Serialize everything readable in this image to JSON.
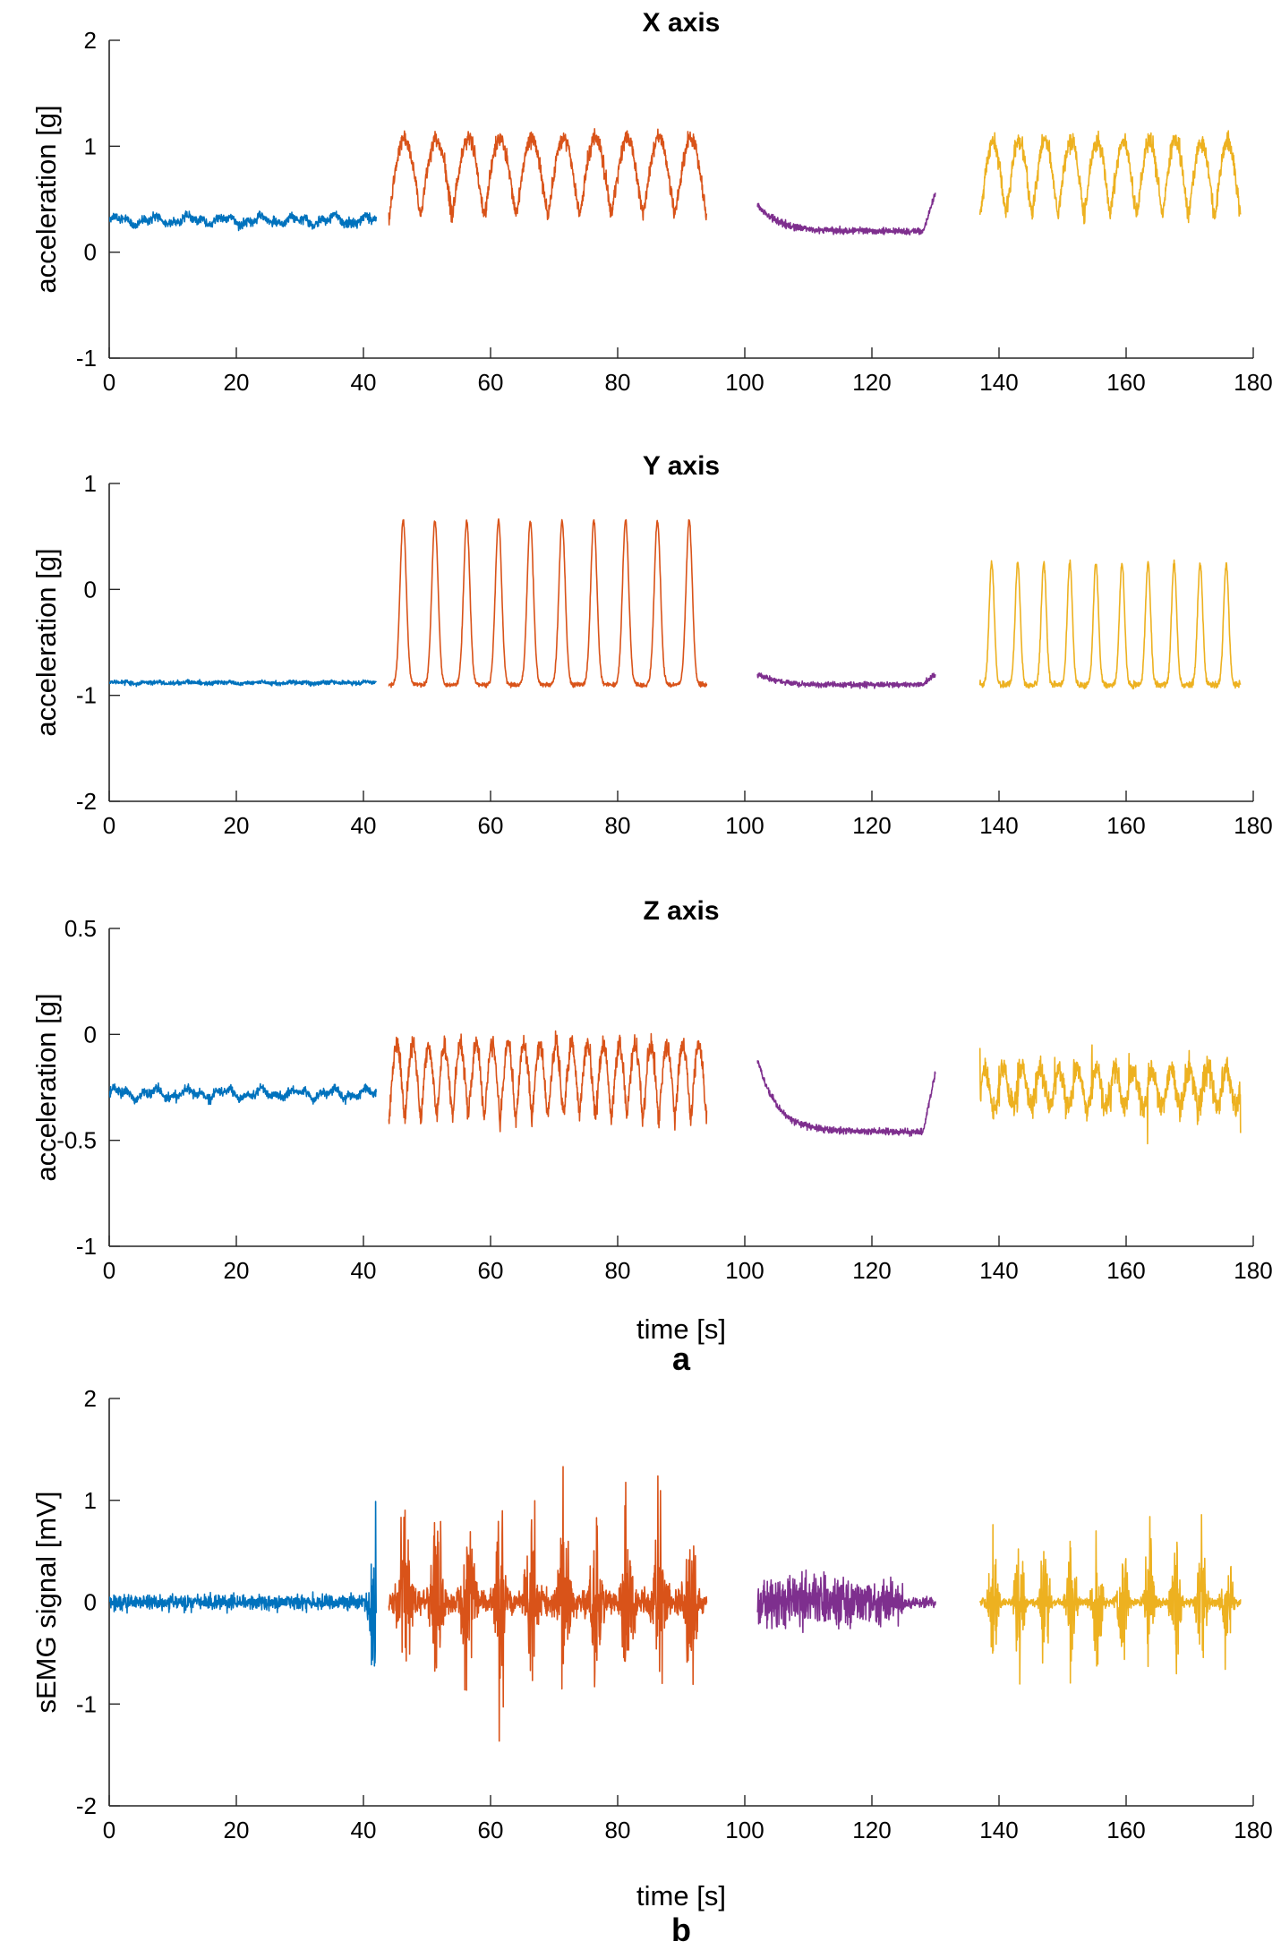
{
  "chart_data": [
    {
      "type": "line",
      "title": "X axis",
      "xlabel": "",
      "ylabel": "acceleration [g]",
      "xlim": [
        0,
        180
      ],
      "ylim": [
        -1,
        2
      ],
      "xticks": [
        "0",
        "20",
        "40",
        "60",
        "80",
        "100",
        "120",
        "140",
        "160",
        "180"
      ],
      "yticks": [
        "-1",
        "0",
        "1",
        "2"
      ],
      "grid": false,
      "series": [
        {
          "color": "#0072BD",
          "t_start": 0,
          "t_end": 42,
          "shape": "flat",
          "base": 0.3,
          "noise": 0.04,
          "slow": 0.05
        },
        {
          "color": "#D95319",
          "t_start": 44,
          "t_end": 94,
          "shape": "oscillation",
          "low": 0.35,
          "high": 1.08,
          "cycles": 10,
          "noise": 0.08
        },
        {
          "color": "#7E2F8E",
          "t_start": 102,
          "t_end": 130,
          "shape": "decay",
          "start": 0.45,
          "base": 0.2,
          "end": 0.55,
          "noise": 0.03
        },
        {
          "color": "#EDB120",
          "t_start": 137,
          "t_end": 178,
          "shape": "oscillation",
          "low": 0.35,
          "high": 1.05,
          "cycles": 10,
          "noise": 0.09
        }
      ]
    },
    {
      "type": "line",
      "title": "Y axis",
      "xlabel": "",
      "ylabel": "acceleration [g]",
      "xlim": [
        0,
        180
      ],
      "ylim": [
        -2,
        1
      ],
      "xticks": [
        "0",
        "20",
        "40",
        "60",
        "80",
        "100",
        "120",
        "140",
        "160",
        "180"
      ],
      "yticks": [
        "-2",
        "-1",
        "0",
        "1"
      ],
      "grid": false,
      "series": [
        {
          "color": "#0072BD",
          "t_start": 0,
          "t_end": 42,
          "shape": "flat",
          "base": -0.88,
          "noise": 0.02,
          "slow": 0.01
        },
        {
          "color": "#D95319",
          "t_start": 44,
          "t_end": 94,
          "shape": "pulses",
          "low": -0.9,
          "high": 0.65,
          "cycles": 10,
          "noise": 0.02
        },
        {
          "color": "#7E2F8E",
          "t_start": 102,
          "t_end": 130,
          "shape": "decay",
          "start": -0.8,
          "base": -0.9,
          "end": -0.8,
          "noise": 0.025
        },
        {
          "color": "#EDB120",
          "t_start": 137,
          "t_end": 178,
          "shape": "pulses",
          "low": -0.9,
          "high": 0.25,
          "cycles": 10,
          "noise": 0.03
        }
      ]
    },
    {
      "type": "line",
      "title": "Z axis",
      "xlabel": "time [s]",
      "ylabel": "acceleration [g]",
      "xlim": [
        0,
        180
      ],
      "ylim": [
        -1,
        0.5
      ],
      "xticks": [
        "0",
        "20",
        "40",
        "60",
        "80",
        "100",
        "120",
        "140",
        "160",
        "180"
      ],
      "yticks": [
        "-1",
        "-0.5",
        "0",
        "0.5"
      ],
      "grid": false,
      "letter": "a",
      "series": [
        {
          "color": "#0072BD",
          "t_start": 0,
          "t_end": 42,
          "shape": "flat",
          "base": -0.28,
          "noise": 0.02,
          "slow": 0.03
        },
        {
          "color": "#D95319",
          "t_start": 44,
          "t_end": 94,
          "shape": "oscillation",
          "low": -0.4,
          "high": -0.05,
          "cycles": 20,
          "noise": 0.05
        },
        {
          "color": "#7E2F8E",
          "t_start": 102,
          "t_end": 130,
          "shape": "decay",
          "start": -0.12,
          "base": -0.46,
          "end": -0.18,
          "noise": 0.015
        },
        {
          "color": "#EDB120",
          "t_start": 137,
          "t_end": 178,
          "shape": "spiky",
          "base": -0.25,
          "amp": 0.15,
          "cycles": 14,
          "noise": 0.06
        }
      ]
    },
    {
      "type": "line",
      "title": "",
      "xlabel": "time [s]",
      "ylabel": "sEMG signal [mV]",
      "xlim": [
        0,
        180
      ],
      "ylim": [
        -2,
        2
      ],
      "xticks": [
        "0",
        "20",
        "40",
        "60",
        "80",
        "100",
        "120",
        "140",
        "160",
        "180"
      ],
      "yticks": [
        "-2",
        "-1",
        "0",
        "1",
        "2"
      ],
      "grid": false,
      "letter": "b",
      "series": [
        {
          "color": "#0072BD",
          "t_start": 0,
          "t_end": 42,
          "shape": "emg-flat",
          "amp": 0.08,
          "burst_end": 1.1
        },
        {
          "color": "#D95319",
          "t_start": 44,
          "t_end": 94,
          "shape": "emg-bursts",
          "amp": 1.1,
          "cycles": 10,
          "floor": 0.15
        },
        {
          "color": "#7E2F8E",
          "t_start": 102,
          "t_end": 130,
          "shape": "emg-flat",
          "amp": 0.25,
          "taper": 0.06
        },
        {
          "color": "#EDB120",
          "t_start": 137,
          "t_end": 178,
          "shape": "emg-bursts",
          "amp": 0.9,
          "cycles": 10,
          "floor": 0.05
        }
      ]
    }
  ]
}
